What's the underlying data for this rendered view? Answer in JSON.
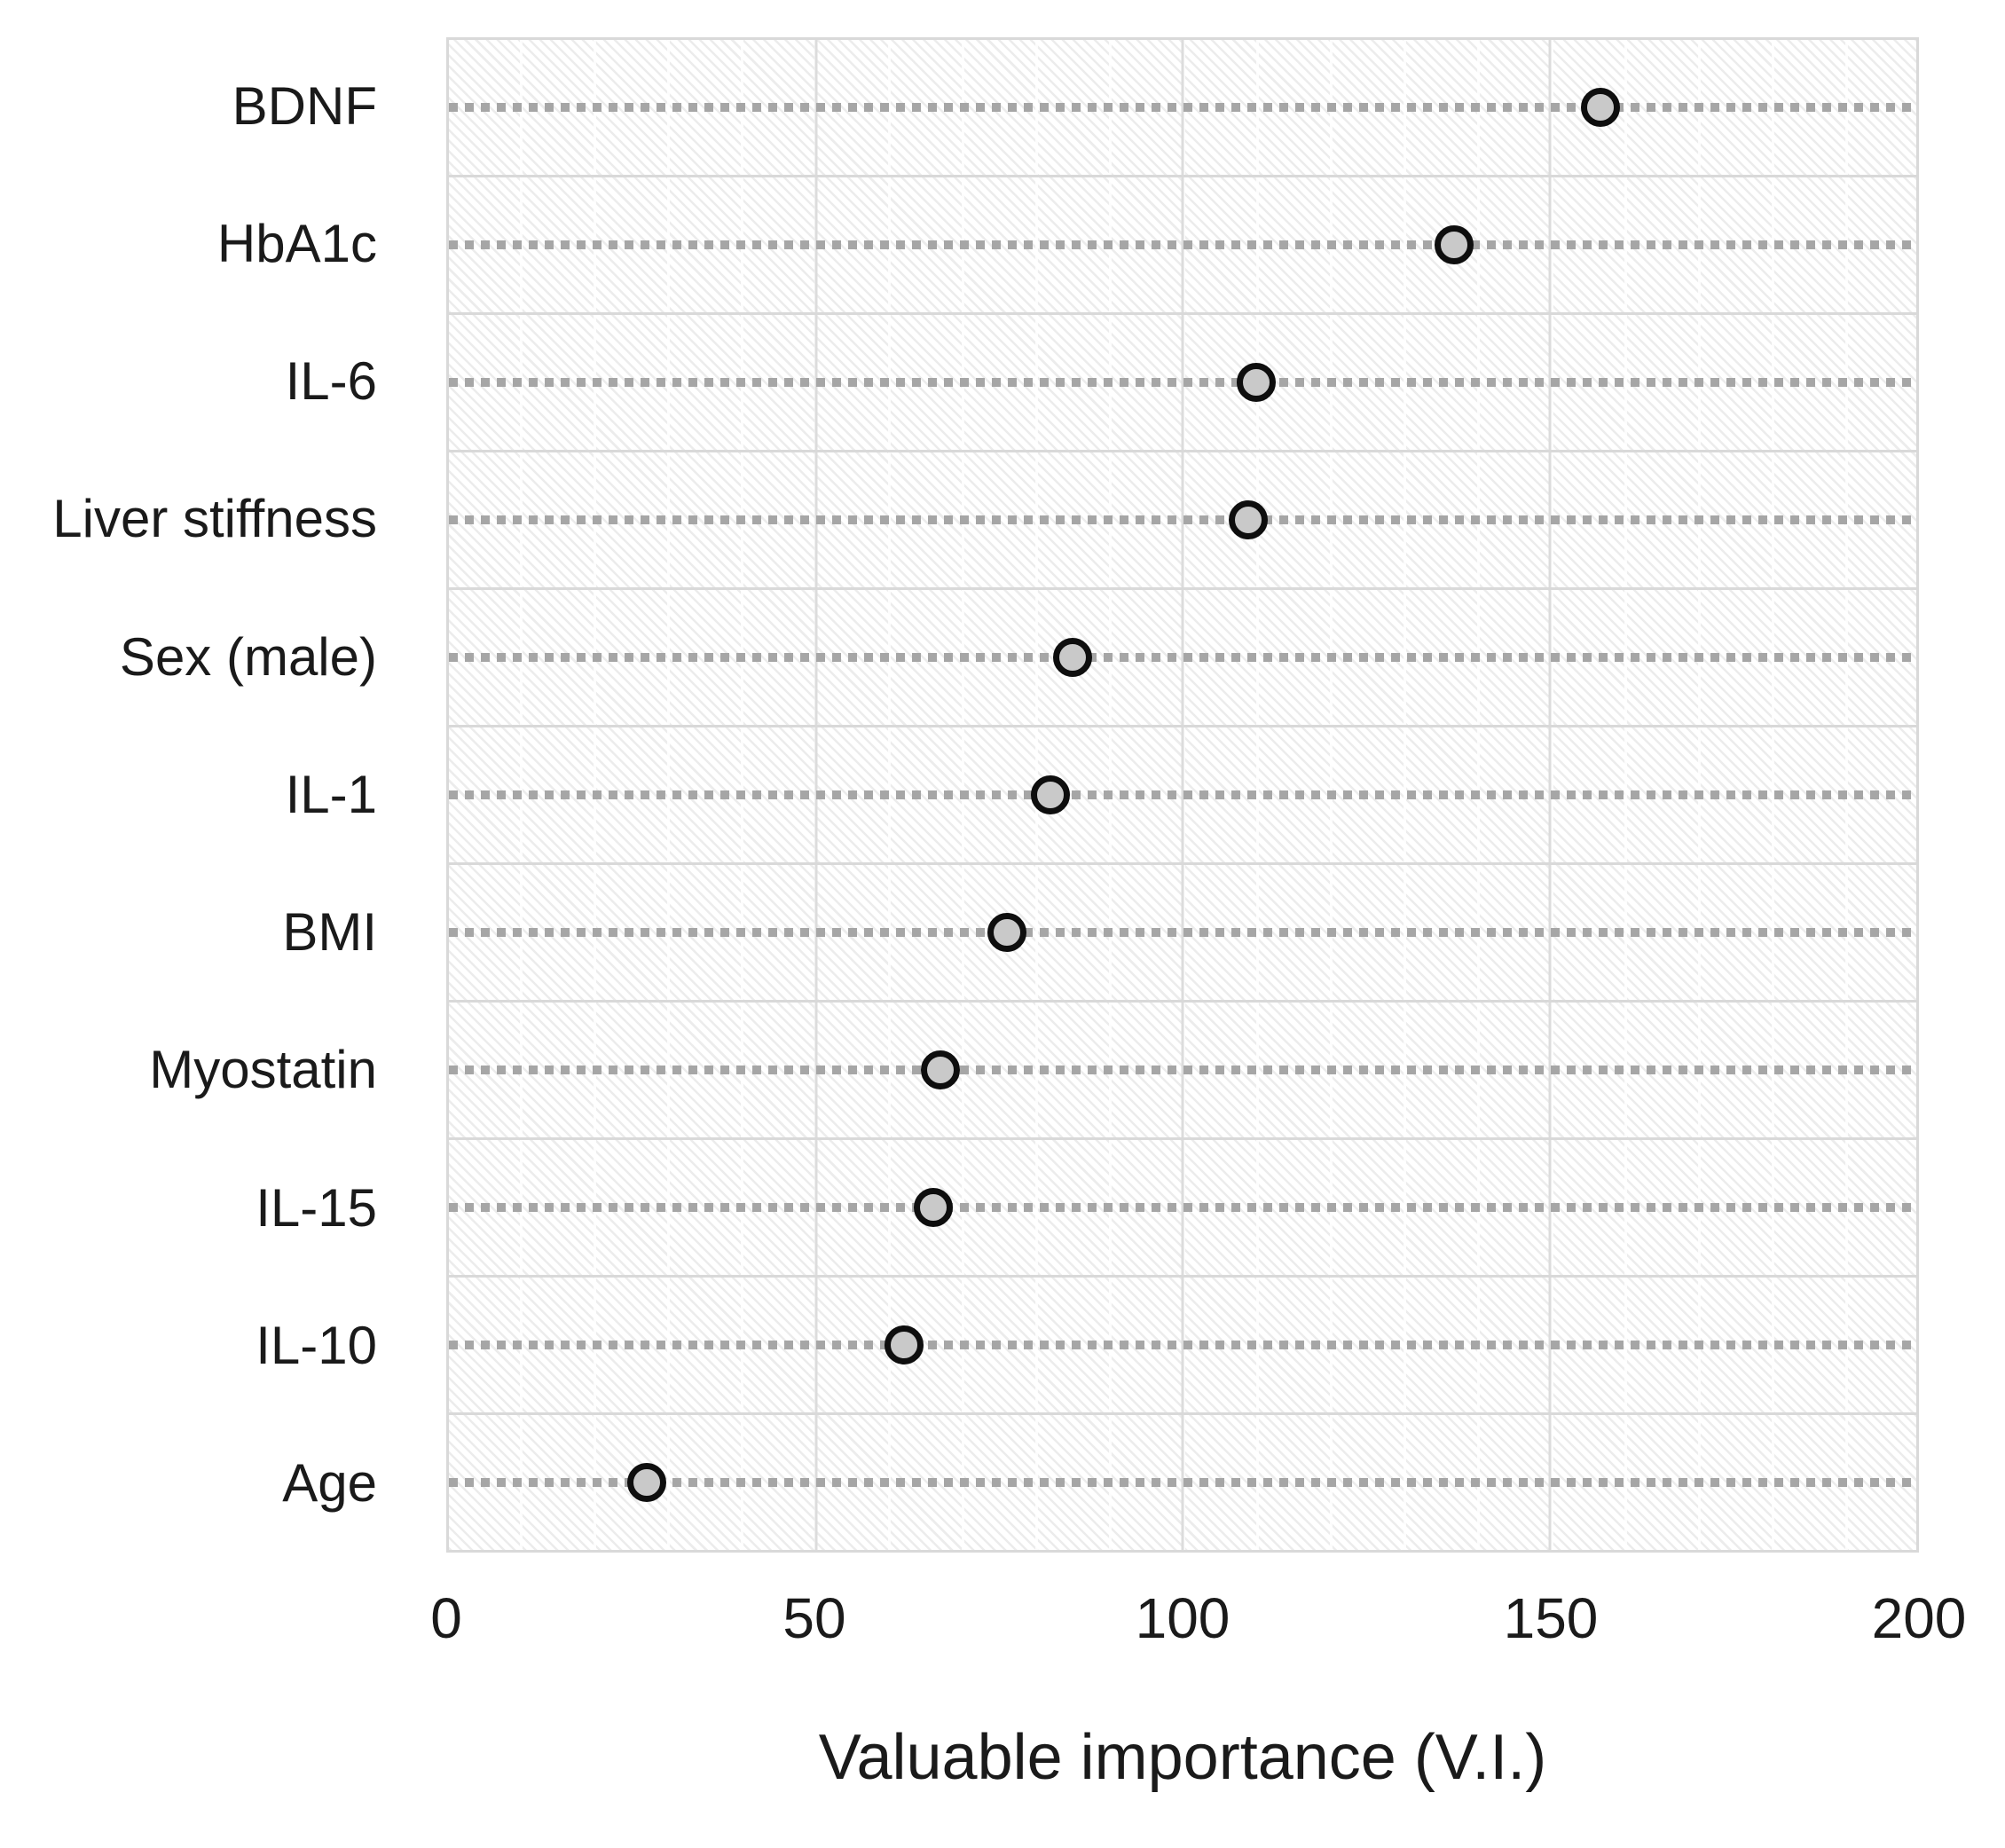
{
  "chart_data": {
    "type": "scatter",
    "subtype": "horizontal-dot-plot",
    "title": "",
    "xlabel": "Valuable importance (V.I.)",
    "ylabel": "",
    "xlim": [
      0,
      200
    ],
    "x_ticks": [
      0,
      50,
      100,
      150,
      200
    ],
    "gridlines": "vertical at 50-unit ticks; dotted horizontal leader line per category; light band separators between categories; diagonal hatch fill in plot area",
    "legend_position": "none",
    "categories": [
      "BDNF",
      "HbA1c",
      "IL-6",
      "Liver stiffness",
      "Sex (male)",
      "IL-1",
      "BMI",
      "Myostatin",
      "IL-15",
      "IL-10",
      "Age"
    ],
    "values": [
      157,
      137,
      110,
      109,
      85,
      82,
      76,
      67,
      66,
      62,
      27
    ]
  },
  "colors": {
    "marker_fill": "#c9c9c9",
    "marker_stroke": "#0e0e0e",
    "leader_dots": "#a6a6a6",
    "band_separator": "#d9d9d9",
    "text": "#1a1a1a",
    "background": "#ffffff"
  }
}
